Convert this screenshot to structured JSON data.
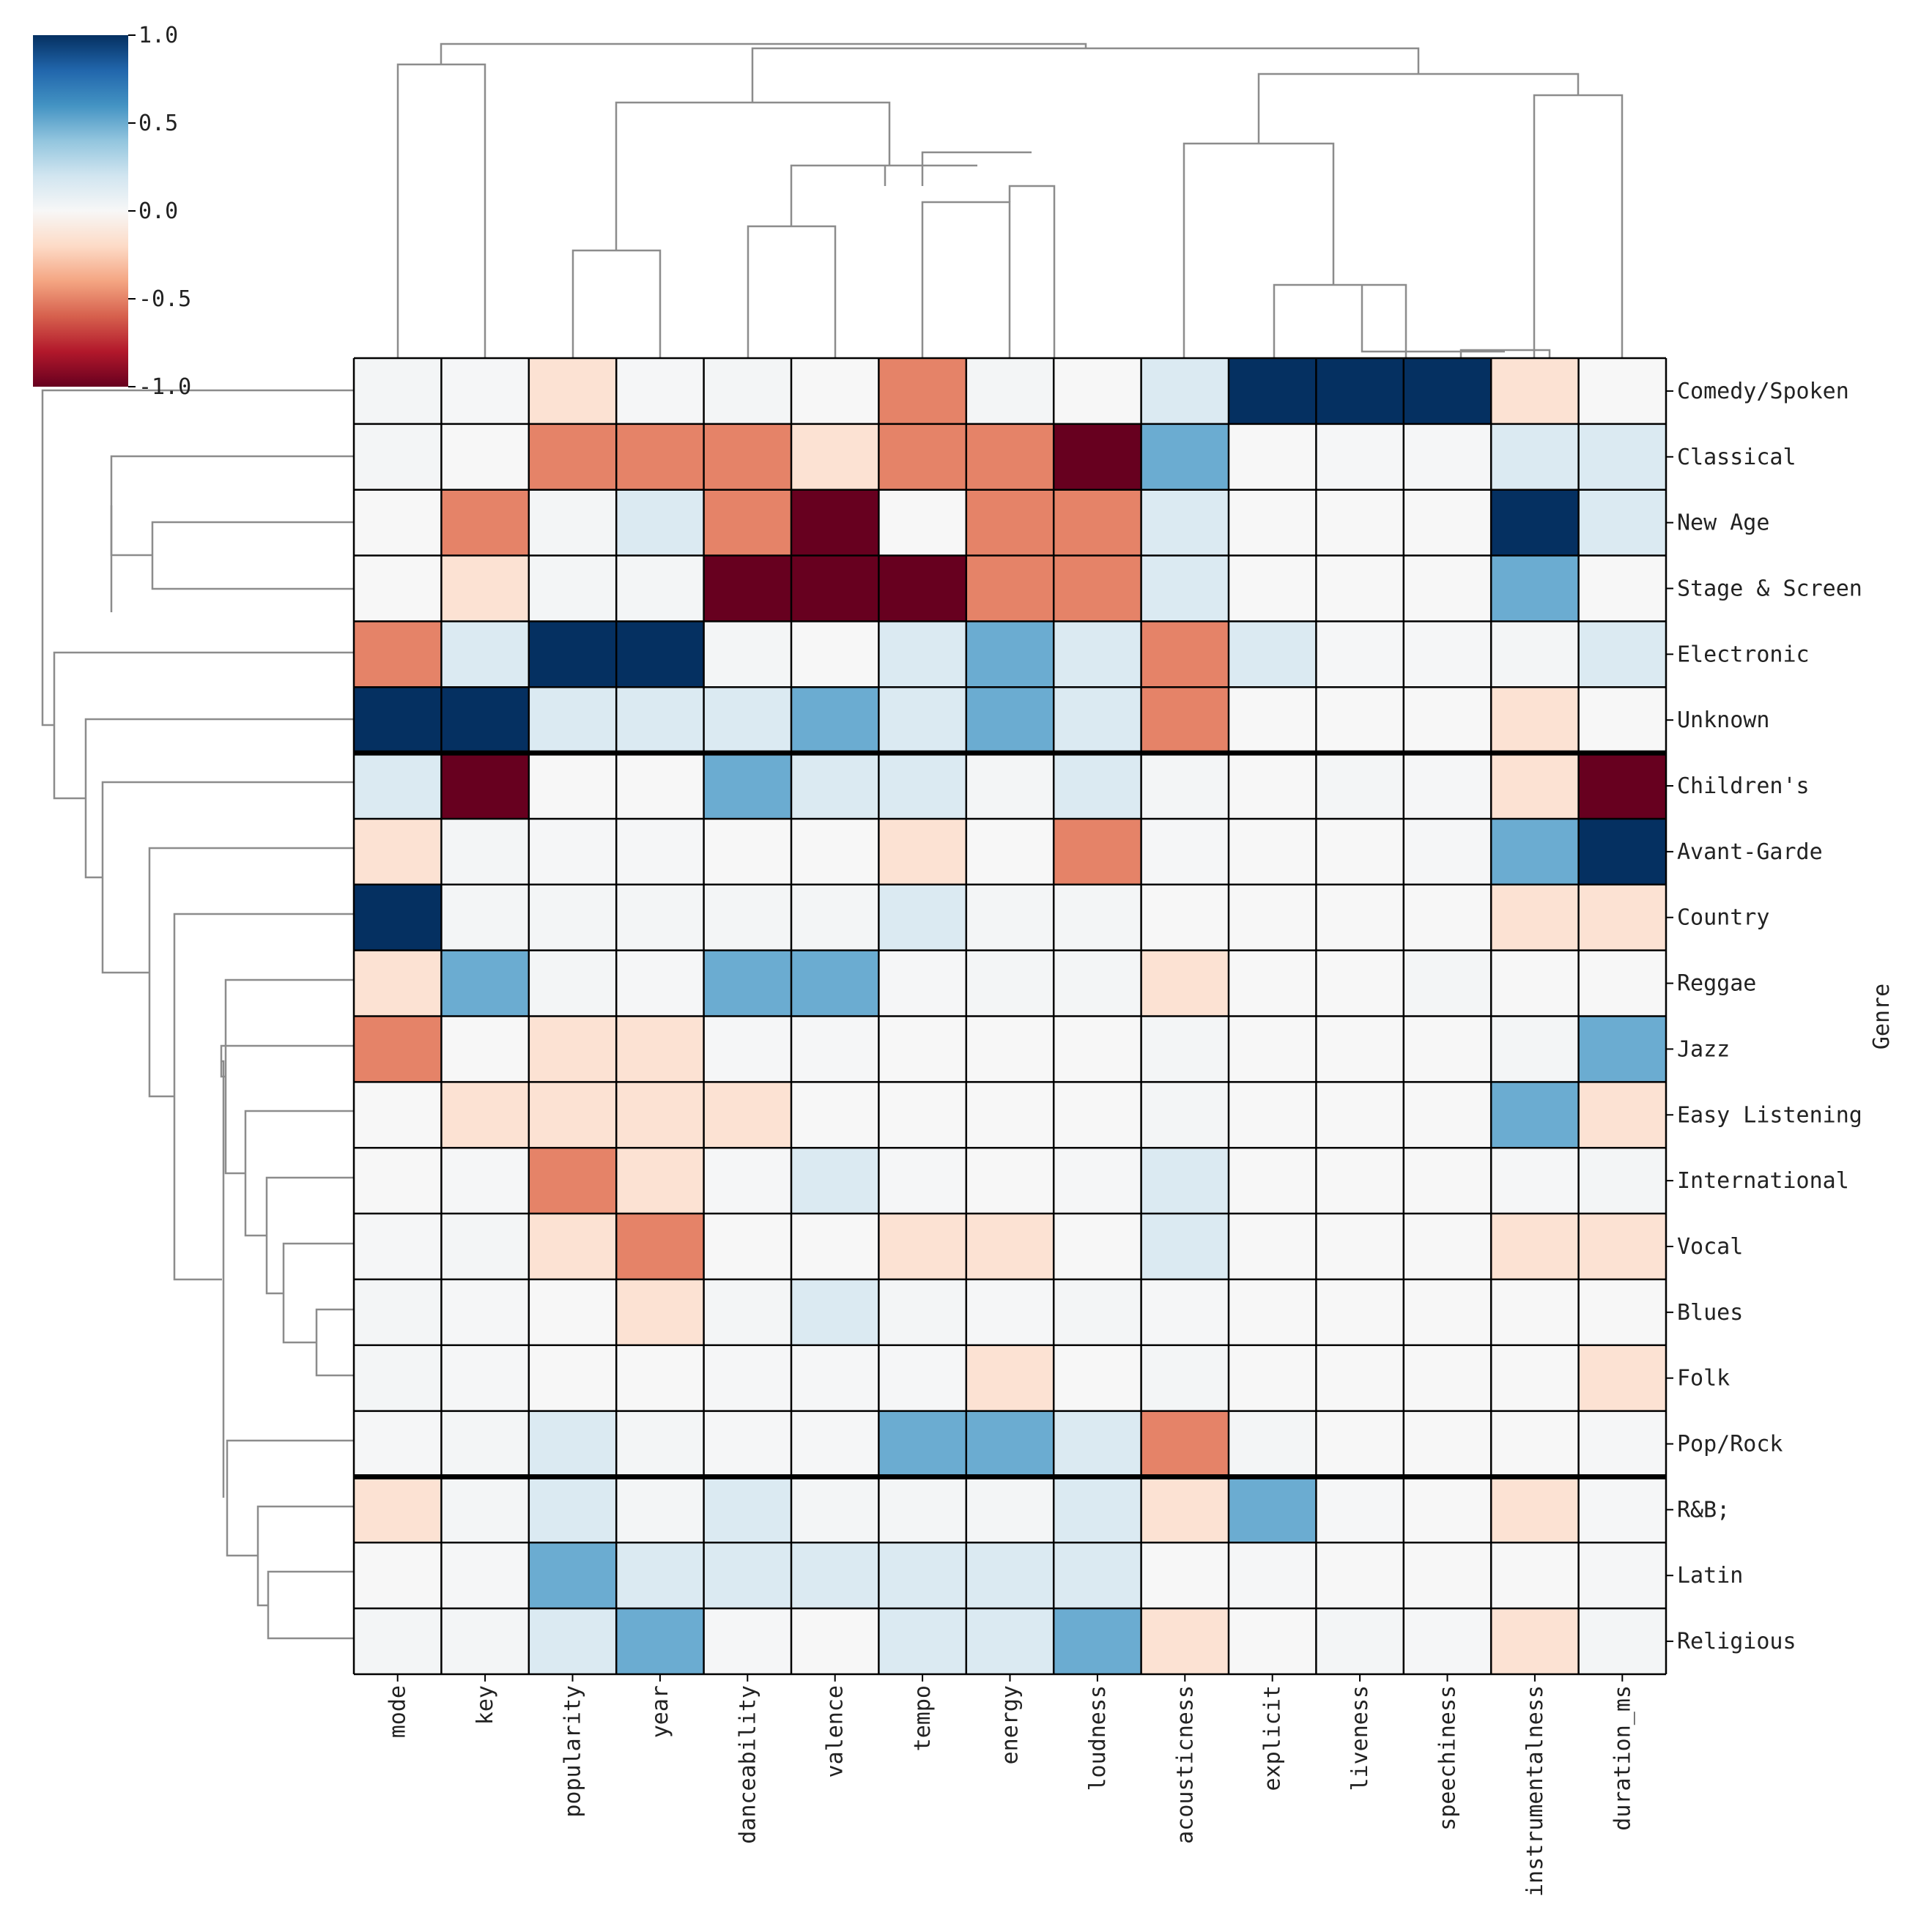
{
  "chart_data": {
    "type": "heatmap",
    "subtype": "clustermap",
    "title": "",
    "xlabel": "",
    "ylabel": "Genre",
    "columns": [
      "mode",
      "key",
      "popularity",
      "year",
      "danceability",
      "valence",
      "tempo",
      "energy",
      "loudness",
      "acousticness",
      "explicit",
      "liveness",
      "speechiness",
      "instrumentalness",
      "duration_ms"
    ],
    "rows": [
      "Comedy/Spoken",
      "Classical",
      "New Age",
      "Stage & Screen",
      "Electronic",
      "Unknown",
      "Children's",
      "Avant-Garde",
      "Country",
      "Reggae",
      "Jazz",
      "Easy Listening",
      "International",
      "Vocal",
      "Blues",
      "Folk",
      "Pop/Rock",
      "R&B;",
      "Latin",
      "Religious"
    ],
    "values": [
      [
        0.02,
        0.01,
        -0.15,
        0.01,
        0.02,
        0.0,
        -0.5,
        0.02,
        0.0,
        0.15,
        1.0,
        1.0,
        1.0,
        -0.15,
        0.0
      ],
      [
        0.02,
        0.0,
        -0.5,
        -0.5,
        -0.5,
        -0.15,
        -0.5,
        -0.5,
        -1.0,
        0.5,
        0.0,
        0.01,
        0.01,
        0.15,
        0.15
      ],
      [
        0.0,
        -0.5,
        0.02,
        0.15,
        -0.5,
        -1.0,
        0.0,
        -0.5,
        -0.5,
        0.15,
        0.0,
        0.0,
        0.0,
        1.0,
        0.15
      ],
      [
        0.0,
        -0.15,
        0.02,
        0.02,
        -1.0,
        -1.0,
        -1.0,
        -0.5,
        -0.5,
        0.15,
        0.0,
        0.0,
        0.0,
        0.5,
        0.0
      ],
      [
        -0.5,
        0.15,
        1.0,
        1.0,
        0.02,
        0.0,
        0.15,
        0.5,
        0.15,
        -0.5,
        0.15,
        0.01,
        0.01,
        0.02,
        0.15
      ],
      [
        1.0,
        1.0,
        0.15,
        0.15,
        0.15,
        0.5,
        0.15,
        0.5,
        0.15,
        -0.5,
        0.0,
        0.0,
        0.0,
        -0.15,
        0.0
      ],
      [
        0.15,
        -1.0,
        0.0,
        0.0,
        0.5,
        0.15,
        0.15,
        0.02,
        0.15,
        0.02,
        0.0,
        0.02,
        0.01,
        -0.15,
        -1.0
      ],
      [
        -0.15,
        0.02,
        0.01,
        0.01,
        0.0,
        0.0,
        -0.15,
        0.0,
        -0.5,
        0.01,
        0.0,
        0.0,
        0.01,
        0.5,
        1.0
      ],
      [
        1.0,
        0.02,
        0.02,
        0.02,
        0.02,
        0.02,
        0.15,
        0.02,
        0.02,
        0.0,
        0.0,
        0.0,
        0.0,
        -0.15,
        -0.15
      ],
      [
        -0.15,
        0.5,
        0.02,
        0.01,
        0.5,
        0.5,
        0.01,
        0.02,
        0.02,
        -0.15,
        0.0,
        0.0,
        0.02,
        0.0,
        0.0
      ],
      [
        -0.5,
        0.0,
        -0.15,
        -0.15,
        0.01,
        0.01,
        0.0,
        0.0,
        0.0,
        0.02,
        0.0,
        0.0,
        0.0,
        0.02,
        0.5
      ],
      [
        0.0,
        -0.15,
        -0.15,
        -0.15,
        -0.15,
        0.0,
        0.0,
        0.0,
        0.0,
        0.02,
        0.0,
        0.0,
        0.0,
        0.5,
        -0.15
      ],
      [
        0.0,
        0.01,
        -0.5,
        -0.15,
        0.01,
        0.15,
        0.01,
        0.0,
        0.01,
        0.15,
        0.0,
        0.0,
        0.0,
        0.01,
        0.02
      ],
      [
        0.01,
        0.02,
        -0.15,
        -0.5,
        0.0,
        0.0,
        -0.15,
        -0.15,
        0.0,
        0.15,
        0.0,
        0.0,
        0.0,
        -0.15,
        -0.15
      ],
      [
        0.02,
        0.01,
        0.0,
        -0.15,
        0.02,
        0.15,
        0.02,
        0.01,
        0.02,
        0.01,
        0.0,
        0.0,
        0.0,
        0.0,
        0.0
      ],
      [
        0.02,
        0.01,
        0.0,
        0.0,
        0.01,
        0.01,
        0.01,
        -0.15,
        0.0,
        0.02,
        0.0,
        0.0,
        0.0,
        0.0,
        -0.15
      ],
      [
        0.01,
        0.02,
        0.15,
        0.02,
        0.01,
        0.01,
        0.5,
        0.5,
        0.15,
        -0.5,
        0.02,
        0.0,
        0.0,
        0.0,
        0.01
      ],
      [
        -0.15,
        0.02,
        0.15,
        0.02,
        0.15,
        0.02,
        0.02,
        0.02,
        0.15,
        -0.15,
        0.5,
        0.01,
        0.0,
        -0.15,
        0.01
      ],
      [
        0.0,
        0.01,
        0.5,
        0.15,
        0.15,
        0.15,
        0.15,
        0.15,
        0.15,
        0.0,
        0.01,
        0.0,
        0.0,
        0.0,
        0.01
      ],
      [
        0.02,
        0.02,
        0.15,
        0.5,
        0.01,
        0.0,
        0.15,
        0.15,
        0.5,
        -0.15,
        0.0,
        0.02,
        0.01,
        -0.15,
        0.02
      ]
    ],
    "colorbar": {
      "colormap": "RdBu",
      "vmin": -1.0,
      "vmax": 1.0,
      "ticks": [
        "1.0",
        "0.5",
        "0.0",
        "-0.5",
        "-1.0"
      ]
    },
    "row_separators_after": [
      "Unknown",
      "Pop/Rock"
    ],
    "dendrograms": [
      "top (columns)",
      "left (rows)"
    ]
  }
}
